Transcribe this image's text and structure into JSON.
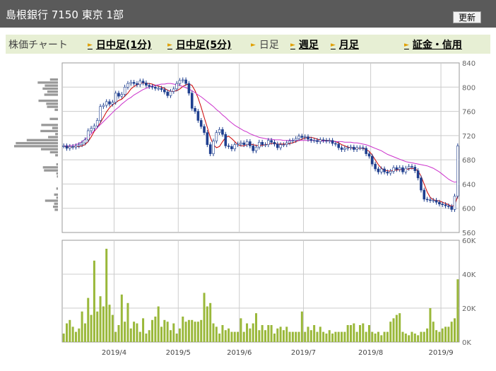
{
  "header": {
    "title": "島根銀行 7150 東京 1部",
    "refresh_label": "更新"
  },
  "nav": {
    "items": [
      {
        "label": "株価チャート",
        "link": false,
        "arrow": false
      },
      {
        "label": "日中足(1分)",
        "link": true,
        "arrow": true
      },
      {
        "label": "日中足(5分)",
        "link": true,
        "arrow": true
      },
      {
        "label": "日足",
        "link": false,
        "arrow": true
      },
      {
        "label": "週足",
        "link": true,
        "arrow": true
      },
      {
        "label": "月足",
        "link": true,
        "arrow": true
      },
      {
        "label": "証金・信用",
        "link": true,
        "arrow": true
      }
    ]
  },
  "colors": {
    "up_candle": "#ffffff",
    "down_candle": "#1f3f8f",
    "ma_short": "#cc0000",
    "ma_long": "#cc33cc",
    "volume": "#9ab83a",
    "volume_profile": "#999999",
    "grid": "#cccccc"
  },
  "chart_data": [
    {
      "type": "candlestick",
      "x_labels": [
        "2019/4",
        "2019/5",
        "2019/6",
        "2019/7",
        "2019/8",
        "2019/9"
      ],
      "y_ticks": [
        840,
        800,
        760,
        720,
        680,
        640,
        600,
        560
      ],
      "ylim": [
        560,
        840
      ],
      "closes": [
        703,
        699,
        702,
        701,
        703,
        705,
        708,
        713,
        728,
        732,
        736,
        745,
        768,
        770,
        776,
        772,
        775,
        790,
        785,
        788,
        800,
        806,
        808,
        806,
        804,
        810,
        807,
        803,
        801,
        800,
        798,
        798,
        796,
        792,
        786,
        793,
        797,
        806,
        811,
        812,
        806,
        790,
        765,
        760,
        745,
        735,
        725,
        705,
        690,
        711,
        725,
        730,
        722,
        703,
        702,
        698,
        705,
        706,
        708,
        705,
        710,
        703,
        695,
        701,
        709,
        705,
        705,
        712,
        709,
        706,
        700,
        705,
        705,
        708,
        711,
        712,
        715,
        719,
        717,
        718,
        714,
        712,
        712,
        710,
        713,
        712,
        711,
        712,
        707,
        706,
        700,
        697,
        699,
        700,
        701,
        697,
        700,
        700,
        699,
        690,
        686,
        673,
        665,
        660,
        665,
        660,
        658,
        661,
        667,
        664,
        667,
        660,
        666,
        669,
        668,
        662,
        650,
        630,
        615,
        614,
        613,
        613,
        610,
        607,
        606,
        604,
        603,
        598,
        620,
        703
      ],
      "series": [
        {
          "name": "",
          "kind": "moving_average",
          "values": [
            703,
            701,
            701,
            701,
            702,
            702,
            703,
            705,
            710,
            718,
            727,
            733,
            741,
            750,
            759,
            766,
            771,
            774,
            778,
            780,
            785,
            790,
            797,
            801,
            804,
            806,
            807,
            806,
            806,
            805,
            803,
            802,
            800,
            798,
            795,
            793,
            793,
            794,
            797,
            801,
            804,
            805,
            803,
            794,
            782,
            767,
            750,
            734,
            717,
            705,
            700,
            702,
            710,
            717,
            719,
            715,
            710,
            705,
            703,
            703,
            705,
            706,
            705,
            704,
            703,
            704,
            705,
            706,
            707,
            707,
            706,
            706,
            706,
            706,
            707,
            708,
            710,
            712,
            714,
            716,
            717,
            717,
            716,
            714,
            713,
            712,
            712,
            712,
            711,
            710,
            708,
            705,
            703,
            701,
            700,
            699,
            699,
            699,
            699,
            697,
            694,
            688,
            680,
            672,
            666,
            663,
            662,
            661,
            663,
            663,
            664,
            664,
            664,
            665,
            666,
            665,
            662,
            653,
            640,
            627,
            618,
            614,
            613,
            612,
            610,
            608,
            606,
            603,
            605,
            620
          ]
        },
        {
          "name": "",
          "kind": "moving_average",
          "values": [
            703,
            703,
            703,
            704,
            705,
            707,
            710,
            714,
            718,
            723,
            728,
            733,
            738,
            743,
            748,
            753,
            758,
            763,
            767,
            772,
            776,
            780,
            783,
            787,
            790,
            793,
            796,
            798,
            800,
            802,
            803,
            804,
            805,
            805,
            806,
            806,
            805,
            804,
            803,
            801,
            799,
            797,
            794,
            791,
            787,
            784,
            780,
            776,
            772,
            768,
            763,
            759,
            754,
            750,
            745,
            741,
            737,
            734,
            731,
            728,
            726,
            723,
            721,
            719,
            717,
            716,
            715,
            714,
            714,
            713,
            713,
            713,
            712,
            712,
            712,
            712,
            712,
            712,
            712,
            712,
            712,
            712,
            712,
            711,
            711,
            711,
            711,
            711,
            710,
            710,
            710,
            710,
            709,
            709,
            709,
            708,
            708,
            707,
            706,
            705,
            703,
            701,
            699,
            697,
            695,
            692,
            689,
            687,
            685,
            683,
            681,
            679,
            677,
            676,
            675,
            674,
            673,
            672,
            671,
            670,
            668,
            666,
            663,
            660,
            656,
            652,
            648,
            645,
            643,
            644
          ]
        }
      ]
    },
    {
      "type": "bar",
      "x_labels": [
        "2019/4",
        "2019/5",
        "2019/6",
        "2019/7",
        "2019/8",
        "2019/9"
      ],
      "y_ticks": [
        "60K",
        "40K",
        "20K",
        "0K"
      ],
      "ylim": [
        0,
        60000
      ],
      "values": [
        5000,
        11000,
        13000,
        9000,
        6000,
        8000,
        18000,
        11000,
        26000,
        16000,
        48000,
        18000,
        27000,
        21000,
        55000,
        22000,
        16000,
        6000,
        10000,
        28000,
        12000,
        23000,
        8000,
        12000,
        11000,
        6000,
        14000,
        5000,
        7000,
        13000,
        15000,
        21000,
        9000,
        13000,
        12000,
        7000,
        11000,
        5000,
        8000,
        15000,
        12000,
        13000,
        13000,
        12000,
        12000,
        13000,
        29000,
        21000,
        23000,
        11000,
        9000,
        5000,
        10000,
        7000,
        8000,
        6000,
        6000,
        6000,
        14000,
        6000,
        11000,
        8000,
        11000,
        17000,
        7000,
        10000,
        7000,
        10000,
        10000,
        5000,
        8000,
        9000,
        7000,
        9000,
        6000,
        6000,
        6000,
        6000,
        18000,
        6000,
        9000,
        7000,
        10000,
        6000,
        9000,
        6000,
        5000,
        7000,
        5000,
        6000,
        6000,
        6000,
        6000,
        10000,
        10000,
        11000,
        6000,
        10000,
        11000,
        6000,
        10000,
        6000,
        5000,
        6000,
        4000,
        6000,
        6000,
        12000,
        14000,
        16000,
        17000,
        6000,
        5000,
        4000,
        6000,
        5000,
        4000,
        6000,
        6000,
        8000,
        20000,
        12000,
        7000,
        6000,
        8000,
        9000,
        9000,
        12000,
        14000,
        37000
      ]
    }
  ]
}
